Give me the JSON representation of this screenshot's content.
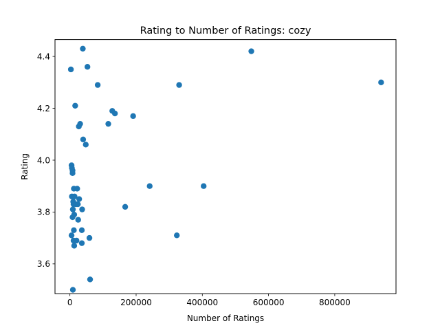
{
  "chart_data": {
    "type": "scatter",
    "title": "Rating to Number of Ratings: cozy",
    "xlabel": "Number of Ratings",
    "ylabel": "Rating",
    "xlim": [
      -45000,
      985000
    ],
    "ylim": [
      3.485,
      4.465
    ],
    "xticks": [
      0,
      200000,
      400000,
      600000,
      800000
    ],
    "xtick_labels": [
      "0",
      "200000",
      "400000",
      "600000",
      "800000"
    ],
    "yticks": [
      3.6,
      3.8,
      4.0,
      4.2,
      4.4
    ],
    "ytick_labels": [
      "3.6",
      "3.8",
      "4.0",
      "4.2",
      "4.4"
    ],
    "grid": false,
    "marker_color": "#1f77b4",
    "series": [
      {
        "points": [
          [
            39000,
            4.43
          ],
          [
            548000,
            4.42
          ],
          [
            3000,
            4.35
          ],
          [
            53000,
            4.36
          ],
          [
            84000,
            4.29
          ],
          [
            330000,
            4.29
          ],
          [
            940000,
            4.3
          ],
          [
            16000,
            4.21
          ],
          [
            128000,
            4.19
          ],
          [
            136000,
            4.18
          ],
          [
            191000,
            4.17
          ],
          [
            31000,
            4.14
          ],
          [
            27000,
            4.13
          ],
          [
            116000,
            4.14
          ],
          [
            40000,
            4.08
          ],
          [
            48000,
            4.06
          ],
          [
            5000,
            3.98
          ],
          [
            6000,
            3.97
          ],
          [
            8000,
            3.96
          ],
          [
            8000,
            3.95
          ],
          [
            12000,
            3.89
          ],
          [
            22000,
            3.89
          ],
          [
            241000,
            3.9
          ],
          [
            404000,
            3.9
          ],
          [
            6000,
            3.86
          ],
          [
            14000,
            3.86
          ],
          [
            10000,
            3.84
          ],
          [
            28000,
            3.85
          ],
          [
            11000,
            3.83
          ],
          [
            18000,
            3.83
          ],
          [
            24000,
            3.83
          ],
          [
            9000,
            3.81
          ],
          [
            37000,
            3.81
          ],
          [
            167000,
            3.82
          ],
          [
            8000,
            3.78
          ],
          [
            13000,
            3.79
          ],
          [
            25000,
            3.77
          ],
          [
            12000,
            3.73
          ],
          [
            36000,
            3.73
          ],
          [
            5000,
            3.71
          ],
          [
            323000,
            3.71
          ],
          [
            11000,
            3.69
          ],
          [
            20000,
            3.69
          ],
          [
            59000,
            3.7
          ],
          [
            13000,
            3.67
          ],
          [
            36000,
            3.68
          ],
          [
            61000,
            3.54
          ],
          [
            9000,
            3.5
          ]
        ]
      }
    ]
  }
}
